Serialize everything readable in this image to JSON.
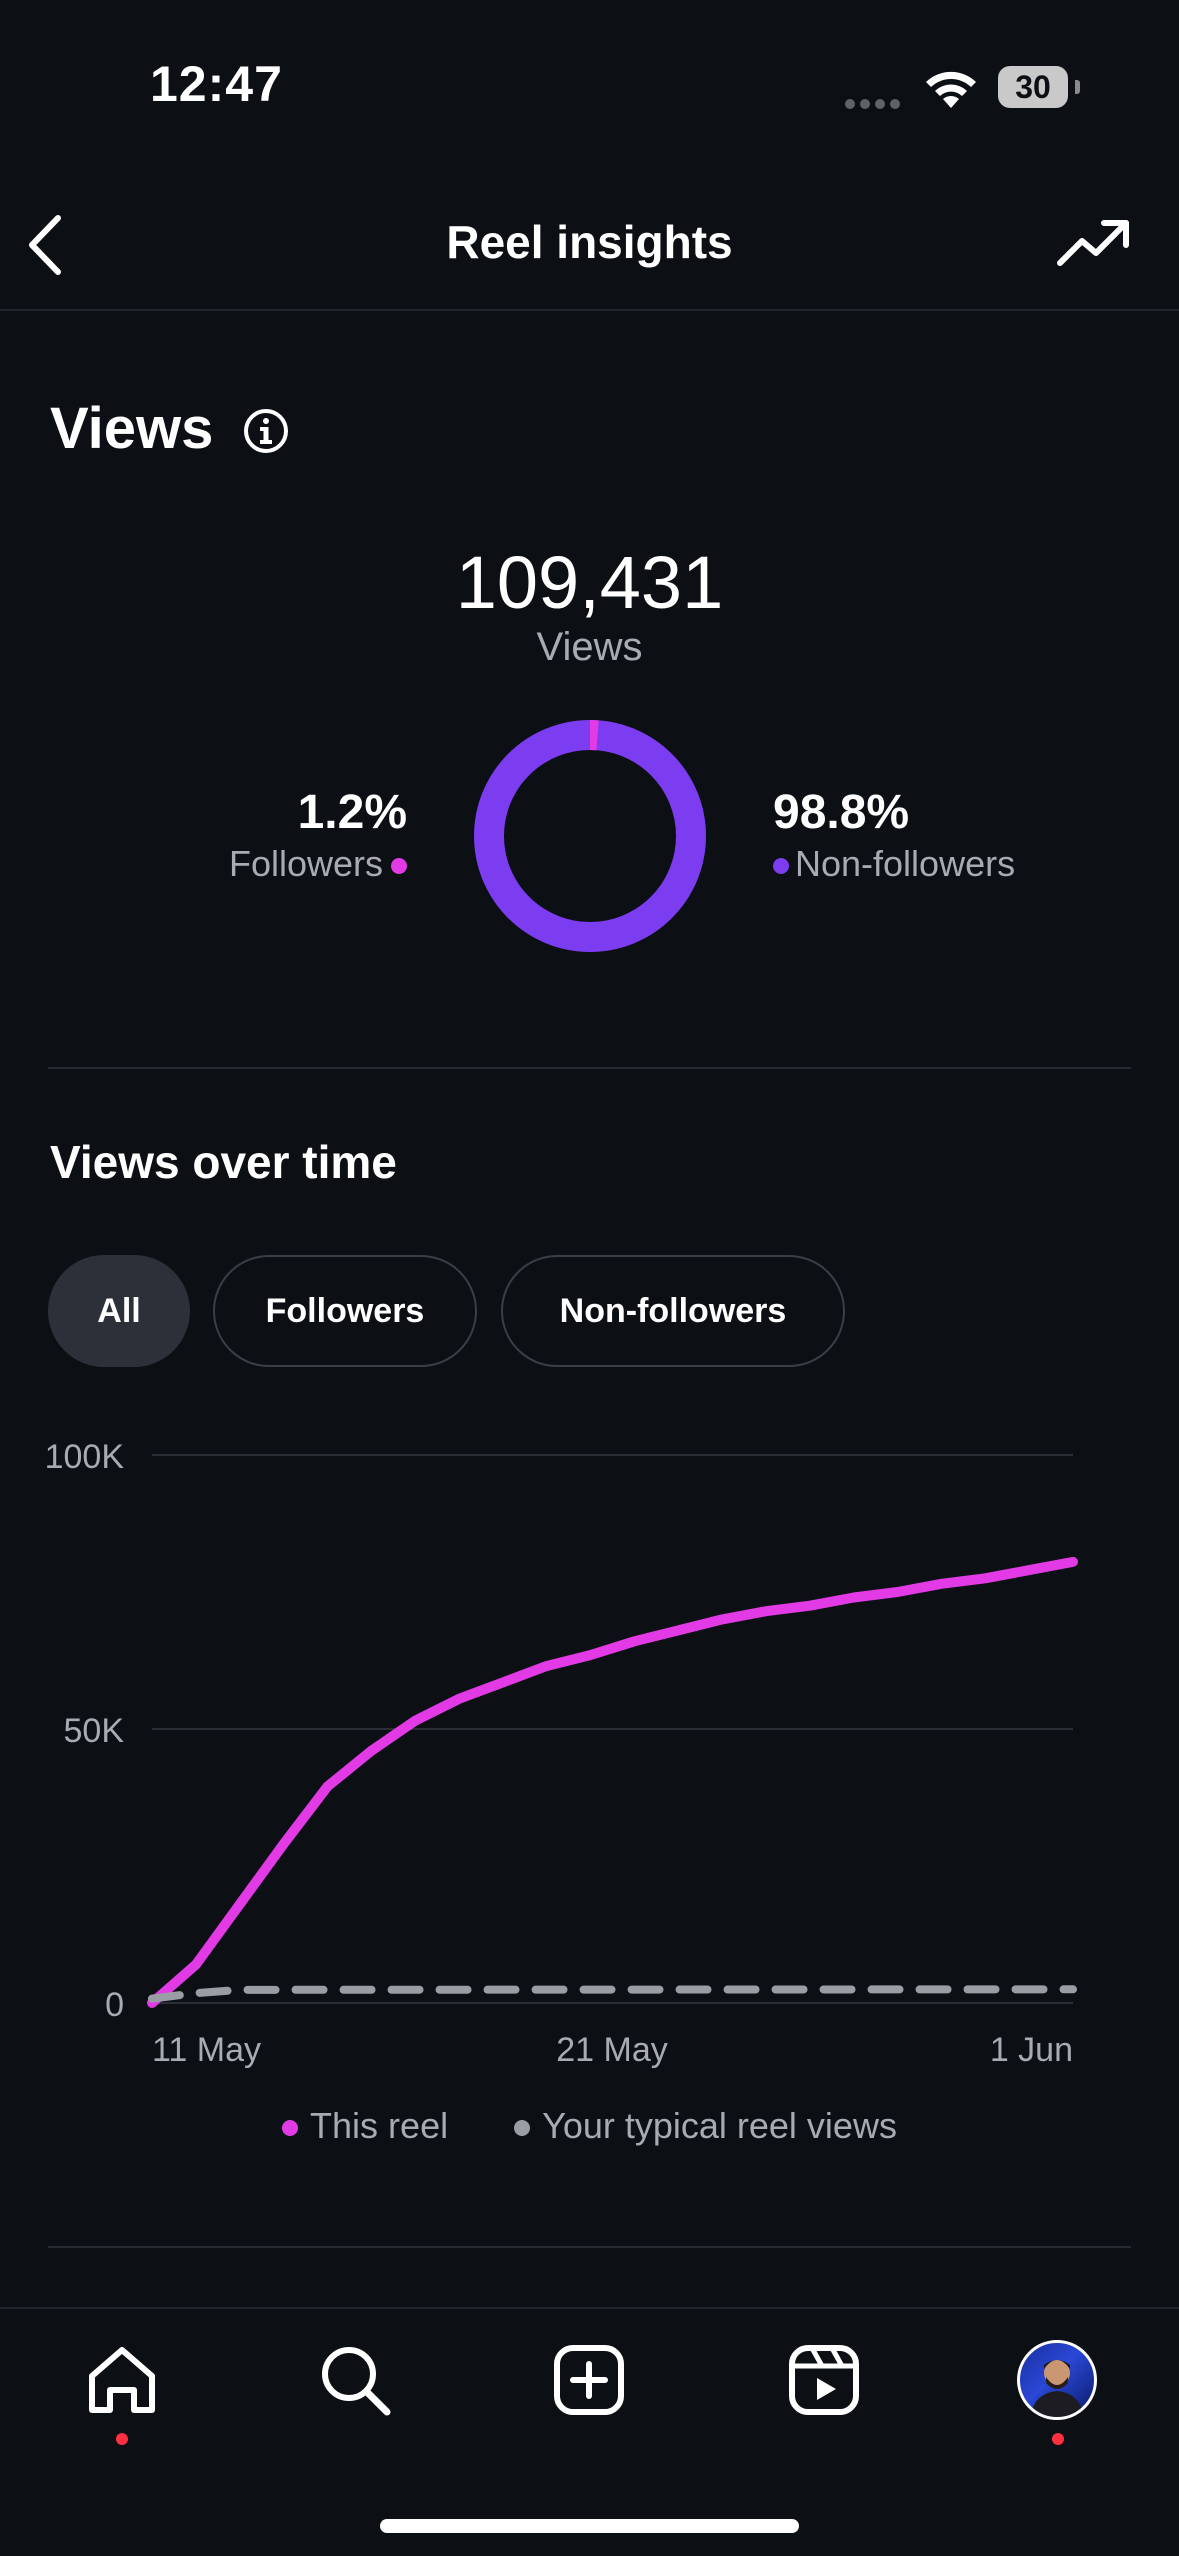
{
  "status_bar": {
    "time": "12:47",
    "battery": "30",
    "icons": [
      "signal-dots-icon",
      "wifi-icon",
      "battery-icon"
    ]
  },
  "nav": {
    "title": "Reel insights",
    "back_icon": "chevron-left-icon",
    "trend_icon": "trending-up-icon"
  },
  "views": {
    "section_title": "Views",
    "info_icon": "info-icon",
    "count": "109,431",
    "count_label": "Views",
    "followers_pct": "1.2%",
    "followers_label": "Followers",
    "followers_share": 0.012,
    "non_followers_pct": "98.8%",
    "non_followers_label": "Non-followers",
    "colors": {
      "followers": "#e23be6",
      "non_followers": "#7c3cf0"
    }
  },
  "views_over_time": {
    "title": "Views over time",
    "filters": [
      {
        "label": "All",
        "active": true
      },
      {
        "label": "Followers",
        "active": false
      },
      {
        "label": "Non-followers",
        "active": false
      }
    ]
  },
  "chart_data": {
    "type": "line",
    "title": "Views over time",
    "y_ticks": [
      "100K",
      "50K",
      "0"
    ],
    "ylim": [
      0,
      100000
    ],
    "x_ticks": [
      "11 May",
      "21 May",
      "1 Jun"
    ],
    "grid": true,
    "legend_placement": "bottom",
    "series": [
      {
        "name": "This reel",
        "color": "#e23be6",
        "style": "solid",
        "x_days": [
          0,
          1,
          2,
          3,
          4,
          5,
          6,
          7,
          8,
          9,
          10,
          11,
          12,
          13,
          14,
          15,
          16,
          17,
          18,
          19,
          20,
          21
        ],
        "values": [
          0,
          7000,
          18000,
          29000,
          39500,
          46000,
          51500,
          55500,
          58500,
          61500,
          63500,
          66000,
          68000,
          70000,
          71500,
          72500,
          74000,
          75000,
          76500,
          77500,
          79000,
          80500
        ]
      },
      {
        "name": "Your typical reel views",
        "color": "#9a9da3",
        "style": "dashed",
        "x_days": [
          0,
          1,
          2,
          21
        ],
        "values": [
          800,
          1800,
          2400,
          2500
        ]
      }
    ]
  },
  "legend": {
    "items": [
      {
        "label": "This reel",
        "color": "#e23be6"
      },
      {
        "label": "Your typical reel views",
        "color": "#9a9da3"
      }
    ]
  },
  "tabbar": {
    "items": [
      {
        "name": "home-icon",
        "badge": true
      },
      {
        "name": "search-icon",
        "badge": false
      },
      {
        "name": "create-icon",
        "badge": false
      },
      {
        "name": "reels-icon",
        "badge": false
      },
      {
        "name": "profile-avatar",
        "badge": true
      }
    ]
  }
}
